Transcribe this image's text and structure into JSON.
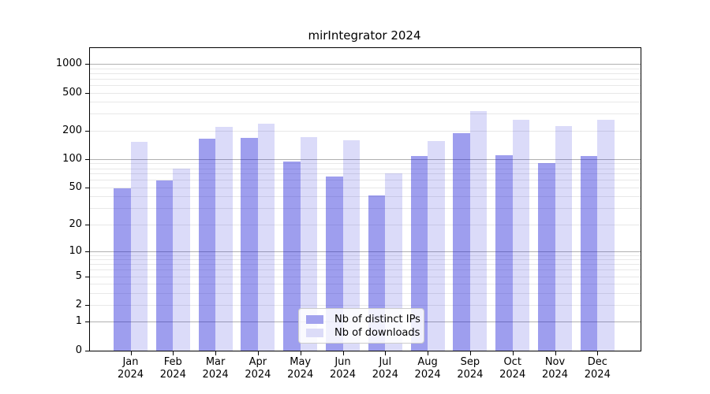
{
  "figure": {
    "background": "#ffffff",
    "spine_color": "#000000",
    "text_color": "#000000"
  },
  "chart_data": {
    "type": "bar",
    "title": "mirIntegrator 2024",
    "categories": [
      "Jan",
      "Feb",
      "Mar",
      "Apr",
      "May",
      "Jun",
      "Jul",
      "Aug",
      "Sep",
      "Oct",
      "Nov",
      "Dec"
    ],
    "x_year_label": "2024",
    "series": [
      {
        "name": "Nb of distinct IPs",
        "color": "rgba(25,25,215,0.42)",
        "legend_color": "#a2a2ee",
        "values": [
          49,
          59,
          163,
          167,
          95,
          65,
          41,
          108,
          188,
          110,
          91,
          108
        ]
      },
      {
        "name": "Nb of downloads",
        "color": "rgba(25,25,215,0.155)",
        "legend_color": "#dcdcf8",
        "values": [
          152,
          80,
          220,
          236,
          169,
          157,
          70,
          155,
          322,
          258,
          221,
          258
        ]
      }
    ],
    "yscale": "log(1+x)",
    "ylim": [
      0,
      1465
    ],
    "y_tick_values": [
      1000,
      500,
      200,
      100,
      50,
      20,
      10,
      5,
      2,
      1,
      0
    ],
    "y_gridlines_major": [
      1,
      10,
      100,
      1000
    ],
    "y_gridlines_minor": [
      2,
      3,
      4,
      5,
      6,
      7,
      8,
      9,
      20,
      30,
      40,
      50,
      60,
      70,
      80,
      90,
      200,
      300,
      400,
      500,
      600,
      700,
      800,
      900
    ],
    "grid": "on",
    "legend_position": "lower center",
    "grid_major_color": "#b0b0b0",
    "grid_minor_color": "#e8e8e8"
  }
}
